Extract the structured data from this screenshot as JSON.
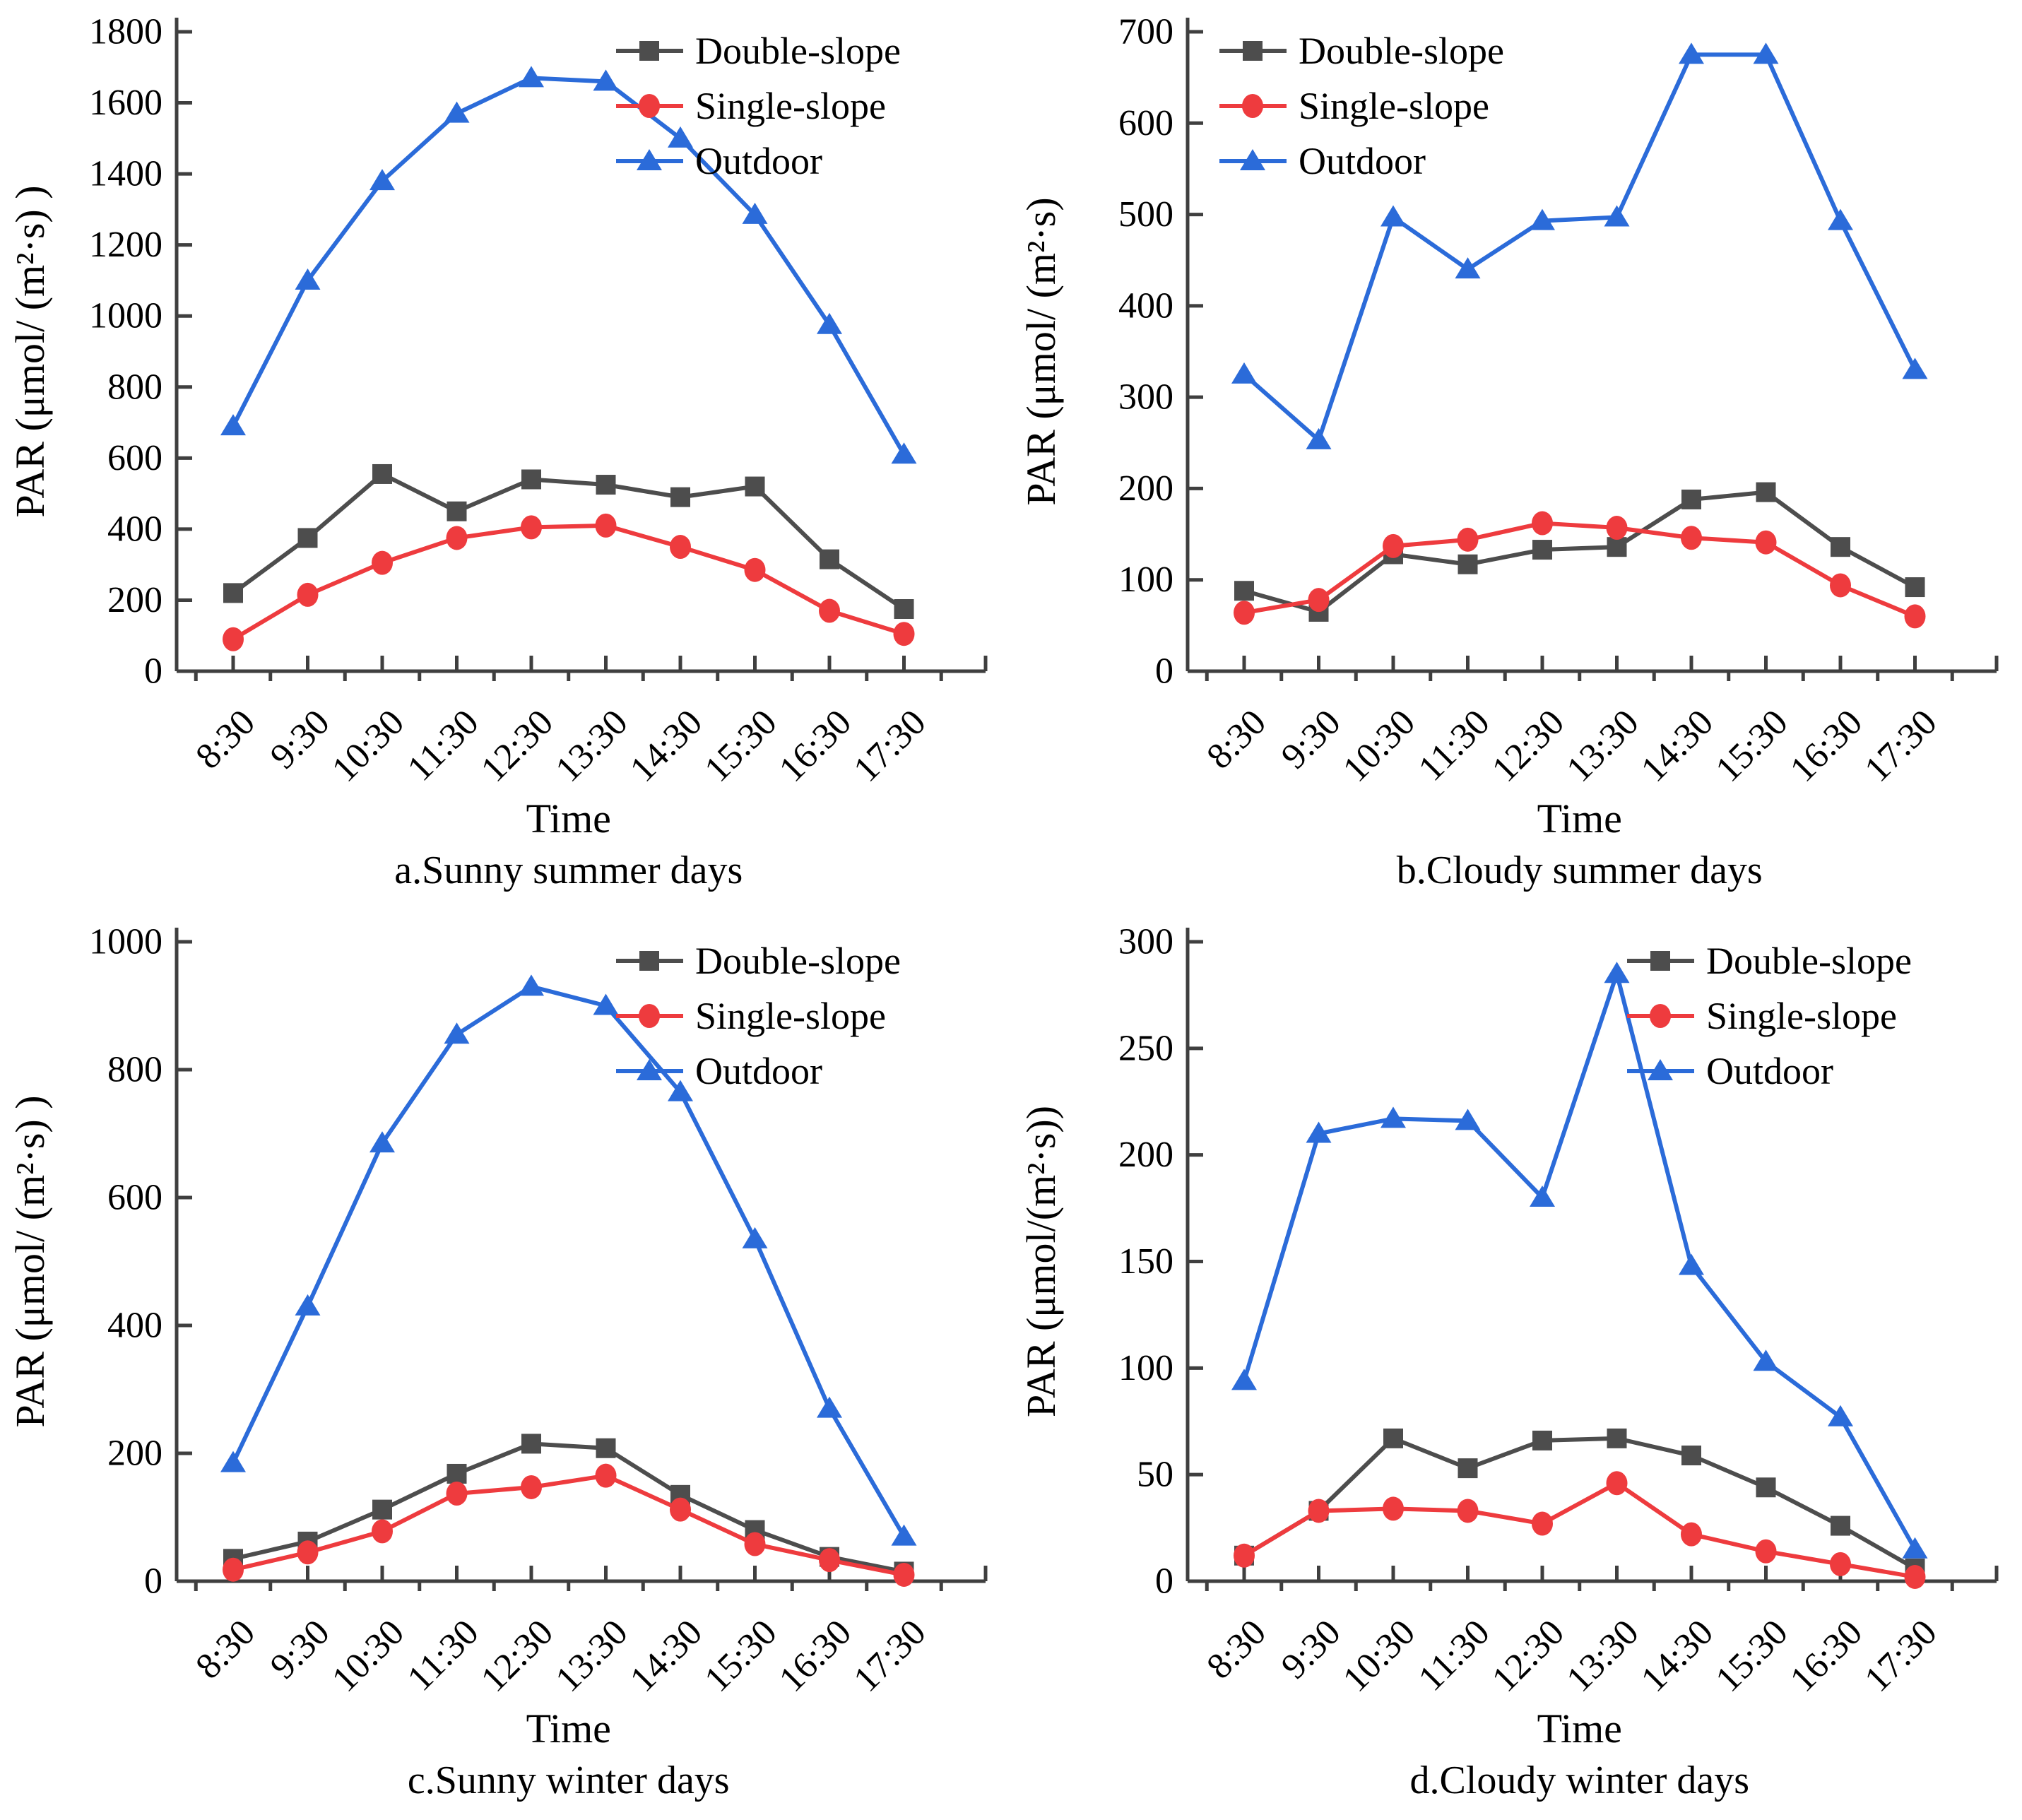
{
  "figure": {
    "background": "#ffffff",
    "layout": "2x2-grid"
  },
  "colors": {
    "double_slope": "#4d4d4d",
    "single_slope": "#ee3b3e",
    "outdoor": "#2b6bd9",
    "axis": "#3f3f3f",
    "text": "#000000"
  },
  "chart_data": [
    {
      "type": "line",
      "caption": "a.Sunny summer days",
      "xlabel": "Time",
      "ylabel": "PAR（μmol/（m²·s））",
      "ylim": [
        0,
        1800
      ],
      "yticks": [
        0,
        200,
        400,
        600,
        800,
        1000,
        1200,
        1400,
        1600,
        1800
      ],
      "categories": [
        "8:30",
        "9:30",
        "10:30",
        "11:30",
        "12:30",
        "13:30",
        "14:30",
        "15:30",
        "16:30",
        "17:30"
      ],
      "grid": false,
      "legend_position": "top-right",
      "series": [
        {
          "name": "Double-slope",
          "marker": "square",
          "color": "#4d4d4d",
          "values": [
            220,
            375,
            555,
            450,
            540,
            525,
            490,
            520,
            315,
            175
          ]
        },
        {
          "name": "Single-slope",
          "marker": "circle",
          "color": "#ee3b3e",
          "values": [
            90,
            215,
            305,
            375,
            405,
            410,
            350,
            285,
            170,
            105
          ]
        },
        {
          "name": "Outdoor",
          "marker": "triangle",
          "color": "#2b6bd9",
          "values": [
            690,
            1100,
            1380,
            1570,
            1670,
            1660,
            1500,
            1285,
            975,
            610
          ]
        }
      ]
    },
    {
      "type": "line",
      "caption": "b.Cloudy summer days",
      "xlabel": "Time",
      "ylabel": "PAR（μmol/（m²·s）",
      "ylim": [
        0,
        700
      ],
      "yticks": [
        0,
        100,
        200,
        300,
        400,
        500,
        600,
        700
      ],
      "categories": [
        "8:30",
        "9:30",
        "10:30",
        "11:30",
        "12:30",
        "13:30",
        "14:30",
        "15:30",
        "16:30",
        "17:30"
      ],
      "grid": false,
      "legend_position": "top-left",
      "series": [
        {
          "name": "Double-slope",
          "marker": "square",
          "color": "#4d4d4d",
          "values": [
            88,
            65,
            128,
            117,
            133,
            136,
            188,
            196,
            136,
            92
          ]
        },
        {
          "name": "Single-slope",
          "marker": "circle",
          "color": "#ee3b3e",
          "values": [
            64,
            78,
            137,
            144,
            162,
            157,
            146,
            141,
            94,
            60
          ]
        },
        {
          "name": "Outdoor",
          "marker": "triangle",
          "color": "#2b6bd9",
          "values": [
            325,
            253,
            497,
            440,
            493,
            497,
            675,
            675,
            493,
            330
          ]
        }
      ]
    },
    {
      "type": "line",
      "caption": "c.Sunny winter days",
      "xlabel": "Time",
      "ylabel": "PAR（μmol/（m²·s））",
      "ylim": [
        0,
        1000
      ],
      "yticks": [
        0,
        200,
        400,
        600,
        800,
        1000
      ],
      "categories": [
        "8:30",
        "9:30",
        "10:30",
        "11:30",
        "12:30",
        "13:30",
        "14:30",
        "15:30",
        "16:30",
        "17:30"
      ],
      "grid": false,
      "legend_position": "top-right",
      "series": [
        {
          "name": "Double-slope",
          "marker": "square",
          "color": "#4d4d4d",
          "values": [
            35,
            62,
            112,
            168,
            215,
            208,
            135,
            80,
            38,
            15
          ]
        },
        {
          "name": "Single-slope",
          "marker": "circle",
          "color": "#ee3b3e",
          "values": [
            18,
            45,
            78,
            137,
            147,
            165,
            112,
            58,
            33,
            10
          ]
        },
        {
          "name": "Outdoor",
          "marker": "triangle",
          "color": "#2b6bd9",
          "values": [
            185,
            430,
            685,
            855,
            930,
            900,
            765,
            535,
            270,
            70
          ]
        }
      ]
    },
    {
      "type": "line",
      "caption": "d.Cloudy winter days",
      "xlabel": "Time",
      "ylabel": "PAR（μmol/(m²·s))",
      "ylim": [
        0,
        300
      ],
      "yticks": [
        0,
        50,
        100,
        150,
        200,
        250,
        300
      ],
      "categories": [
        "8:30",
        "9:30",
        "10:30",
        "11:30",
        "12:30",
        "13:30",
        "14:30",
        "15:30",
        "16:30",
        "17:30"
      ],
      "grid": false,
      "legend_position": "top-right",
      "series": [
        {
          "name": "Double-slope",
          "marker": "square",
          "color": "#4d4d4d",
          "values": [
            12,
            33,
            67,
            53,
            66,
            67,
            59,
            44,
            26,
            6
          ]
        },
        {
          "name": "Single-slope",
          "marker": "circle",
          "color": "#ee3b3e",
          "values": [
            12,
            33,
            34,
            33,
            27,
            46,
            22,
            14,
            8,
            2
          ]
        },
        {
          "name": "Outdoor",
          "marker": "triangle",
          "color": "#2b6bd9",
          "values": [
            94,
            210,
            217,
            216,
            180,
            285,
            148,
            103,
            77,
            15
          ]
        }
      ]
    }
  ]
}
